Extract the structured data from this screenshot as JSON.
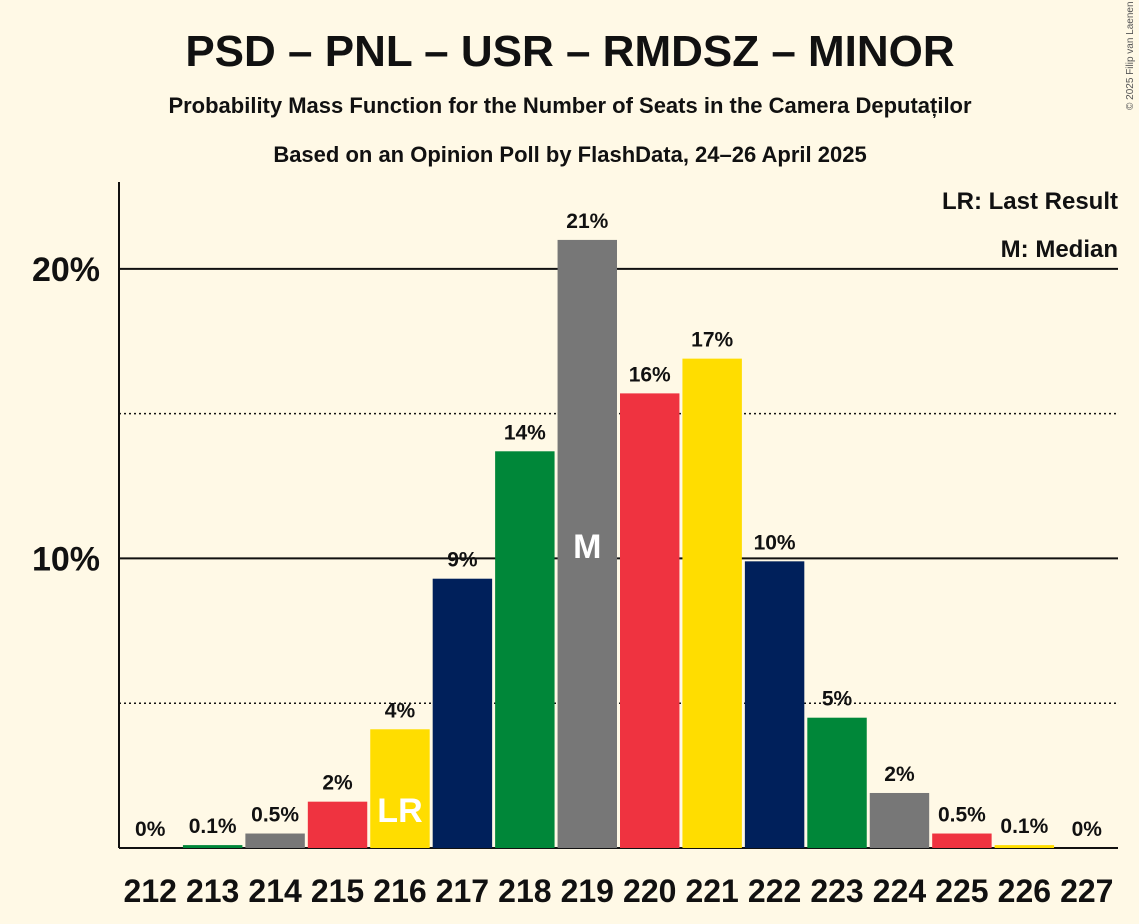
{
  "title": "PSD – PNL – USR – RMDSZ – MINOR",
  "subtitle1": "Probability Mass Function for the Number of Seats in the Camera Deputaților",
  "subtitle2": "Based on an Opinion Poll by FlashData, 24–26 April 2025",
  "copyright": "© 2025 Filip van Laenen",
  "legend": {
    "lr": "LR: Last Result",
    "m": "M: Median"
  },
  "colors": {
    "background": "#FFF9E6",
    "psd_red": "#EF3340",
    "pnl_yellow": "#FFDD00",
    "usr_navy": "#00205B",
    "rmdsz_green": "#008739",
    "minor_gray": "#777777"
  },
  "chart_data": {
    "type": "bar",
    "categories": [
      "212",
      "213",
      "214",
      "215",
      "216",
      "217",
      "218",
      "219",
      "220",
      "221",
      "222",
      "223",
      "224",
      "225",
      "226",
      "227"
    ],
    "values": [
      0,
      0.1,
      0.5,
      1.6,
      4.1,
      9.3,
      13.7,
      21.0,
      15.7,
      16.9,
      9.9,
      4.5,
      1.9,
      0.5,
      0.1,
      0
    ],
    "labels": [
      "0%",
      "0.1%",
      "0.5%",
      "2%",
      "4%",
      "9%",
      "14%",
      "21%",
      "16%",
      "17%",
      "10%",
      "5%",
      "2%",
      "0.5%",
      "0.1%",
      "0%"
    ],
    "bar_colors": [
      "#777777",
      "#008739",
      "#777777",
      "#EF3340",
      "#FFDD00",
      "#00205B",
      "#008739",
      "#777777",
      "#EF3340",
      "#FFDD00",
      "#00205B",
      "#008739",
      "#777777",
      "#EF3340",
      "#FFDD00",
      "#00205B"
    ],
    "ylim": [
      0,
      23
    ],
    "yticks": [
      10,
      20
    ],
    "ytick_labels": [
      "10%",
      "20%"
    ],
    "dotted_gridlines": [
      5,
      15
    ],
    "last_result": {
      "category": "216",
      "marker": "LR"
    },
    "median": {
      "category": "219",
      "marker": "M"
    },
    "grid": true,
    "legend_position": "top-right"
  }
}
